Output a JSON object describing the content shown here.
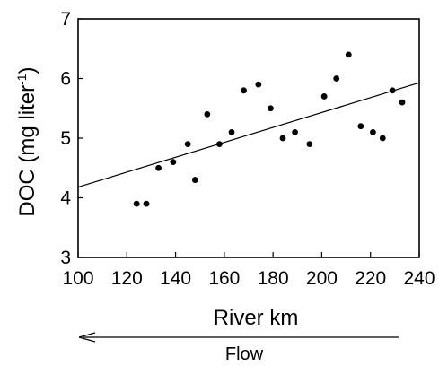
{
  "chart_data": {
    "type": "scatter",
    "xlabel": "River km",
    "ylabel_main": "DOC (mg liter",
    "ylabel_sup": "-1",
    "ylabel_close": ")",
    "xlim": [
      100,
      240
    ],
    "ylim": [
      3,
      7
    ],
    "xticks": [
      100,
      120,
      140,
      160,
      180,
      200,
      220,
      240
    ],
    "yticks": [
      3,
      4,
      5,
      6,
      7
    ],
    "grid": false,
    "legend": "none",
    "points": [
      {
        "x": 124,
        "y": 3.9
      },
      {
        "x": 128,
        "y": 3.9
      },
      {
        "x": 133,
        "y": 4.5
      },
      {
        "x": 139,
        "y": 4.6
      },
      {
        "x": 145,
        "y": 4.9
      },
      {
        "x": 148,
        "y": 4.3
      },
      {
        "x": 153,
        "y": 5.4
      },
      {
        "x": 158,
        "y": 4.9
      },
      {
        "x": 163,
        "y": 5.1
      },
      {
        "x": 168,
        "y": 5.8
      },
      {
        "x": 174,
        "y": 5.9
      },
      {
        "x": 179,
        "y": 5.5
      },
      {
        "x": 184,
        "y": 5.0
      },
      {
        "x": 189,
        "y": 5.1
      },
      {
        "x": 195,
        "y": 4.9
      },
      {
        "x": 201,
        "y": 5.7
      },
      {
        "x": 206,
        "y": 6.0
      },
      {
        "x": 211,
        "y": 6.4
      },
      {
        "x": 216,
        "y": 5.2
      },
      {
        "x": 221,
        "y": 5.1
      },
      {
        "x": 225,
        "y": 5.0
      },
      {
        "x": 229,
        "y": 5.8
      },
      {
        "x": 233,
        "y": 5.6
      }
    ],
    "trendline": {
      "x": [
        100,
        240
      ],
      "y": [
        4.18,
        5.93
      ]
    },
    "annotation": {
      "flow_label": "Flow",
      "flow_direction": "toward lower river km"
    }
  }
}
